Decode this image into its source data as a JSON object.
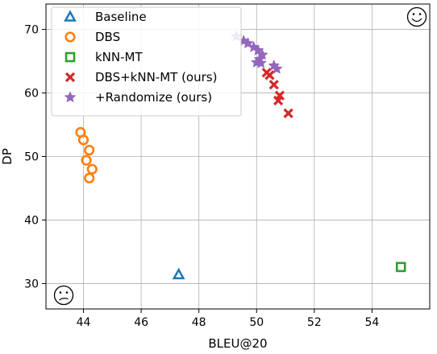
{
  "chart_data": {
    "type": "scatter",
    "title": "",
    "xlabel": "BLEU@20",
    "ylabel": "DP",
    "xlim": [
      42.7,
      56.0
    ],
    "ylim": [
      26.0,
      74.0
    ],
    "xticks": [
      44,
      46,
      48,
      50,
      52,
      54
    ],
    "yticks": [
      30,
      40,
      50,
      60,
      70
    ],
    "grid": true,
    "legend_position": "top-left",
    "annotations": [
      {
        "name": "happy-face-icon",
        "symbol": "☺",
        "position": "top-right"
      },
      {
        "name": "confused-face-icon",
        "symbol": "😕",
        "position": "bottom-left"
      }
    ],
    "series": [
      {
        "name": "Baseline",
        "marker": "triangle",
        "color": "#1f77b4",
        "points": [
          [
            47.3,
            31.4
          ]
        ]
      },
      {
        "name": "DBS",
        "marker": "circle",
        "color": "#ff7f0e",
        "points": [
          [
            43.9,
            53.8
          ],
          [
            44.0,
            52.6
          ],
          [
            44.2,
            51.0
          ],
          [
            44.1,
            49.4
          ],
          [
            44.3,
            48.0
          ],
          [
            44.2,
            46.6
          ]
        ]
      },
      {
        "name": "kNN-MT",
        "marker": "square",
        "color": "#2ca02c",
        "points": [
          [
            55.0,
            32.6
          ]
        ]
      },
      {
        "name": "DBS+kNN-MT (ours)",
        "marker": "x",
        "color": "#d62728",
        "points": [
          [
            50.35,
            63.2
          ],
          [
            50.45,
            62.8
          ],
          [
            50.6,
            61.3
          ],
          [
            50.8,
            59.6
          ],
          [
            50.75,
            58.8
          ],
          [
            51.1,
            56.8
          ]
        ]
      },
      {
        "name": " +Randomize (ours)",
        "marker": "star",
        "color": "#9467bd",
        "points": [
          [
            49.3,
            68.9
          ],
          [
            49.55,
            68.2
          ],
          [
            49.7,
            67.8
          ],
          [
            49.9,
            67.2
          ],
          [
            50.05,
            66.7
          ],
          [
            50.2,
            66.0
          ],
          [
            50.1,
            65.3
          ],
          [
            50.0,
            64.8
          ],
          [
            50.15,
            64.7
          ],
          [
            50.6,
            64.3
          ],
          [
            50.7,
            63.8
          ]
        ]
      }
    ]
  }
}
